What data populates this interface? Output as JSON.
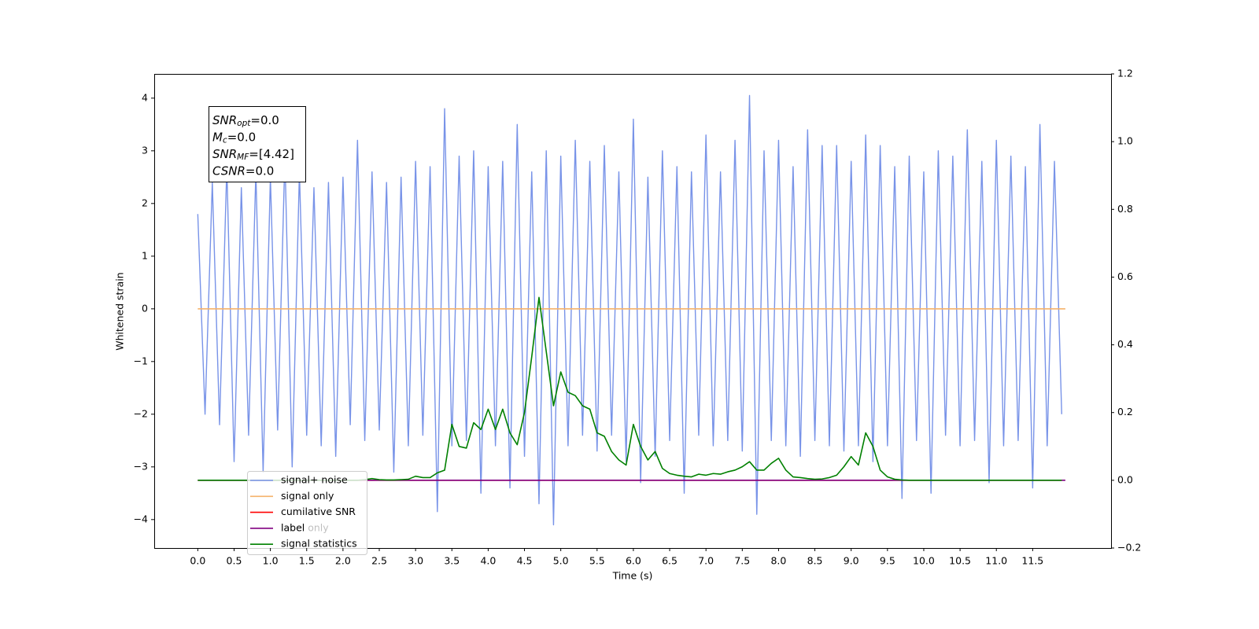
{
  "chart_data": {
    "type": "line",
    "xlabel": "Time (s)",
    "ylabel": "Whitened strain",
    "xlim": [
      -0.6,
      12.58
    ],
    "ylim": [
      -4.54,
      4.46
    ],
    "y2lim": [
      -0.2,
      1.2
    ],
    "xticks": [
      {
        "value": 0,
        "label": "0.0"
      },
      0.5,
      {
        "value": 1,
        "label": "1.0"
      },
      1.5,
      {
        "value": 2,
        "label": "2.0"
      },
      2.5,
      {
        "value": 3,
        "label": "3.0"
      },
      3.5,
      {
        "value": 4,
        "label": "4.0"
      },
      4.5,
      {
        "value": 5,
        "label": "5.0"
      },
      5.5,
      {
        "value": 6,
        "label": "6.0"
      },
      6.5,
      {
        "value": 7,
        "label": "7.0"
      },
      7.5,
      {
        "value": 8,
        "label": "8.0"
      },
      8.5,
      {
        "value": 9,
        "label": "9.0"
      },
      9.5,
      {
        "value": 10,
        "label": "10.0"
      },
      10.5,
      {
        "value": 11,
        "label": "11.0"
      },
      11.5
    ],
    "yticks": [
      {
        "value": -4,
        "label": "−4"
      },
      {
        "value": -3,
        "label": "−3"
      },
      {
        "value": -2,
        "label": "−2"
      },
      {
        "value": -1,
        "label": "−1"
      },
      0,
      1,
      2,
      3,
      4
    ],
    "y2ticks": [
      {
        "value": -0.2,
        "label": "−0.2"
      },
      {
        "value": 0,
        "label": "0.0"
      },
      0.2,
      0.4,
      0.6,
      0.8,
      {
        "value": 1,
        "label": "1.0"
      },
      1.2
    ],
    "grid": false,
    "x": [
      0.0,
      0.1,
      0.2,
      0.3,
      0.4,
      0.5,
      0.6,
      0.7,
      0.8,
      0.9,
      1.0,
      1.1,
      1.2,
      1.3,
      1.4,
      1.5,
      1.6,
      1.7,
      1.8,
      1.9,
      2.0,
      2.1,
      2.2,
      2.3,
      2.4,
      2.5,
      2.6,
      2.7,
      2.8,
      2.9,
      3.0,
      3.1,
      3.2,
      3.3,
      3.4,
      3.5,
      3.6,
      3.7,
      3.8,
      3.9,
      4.0,
      4.1,
      4.2,
      4.3,
      4.4,
      4.5,
      4.6,
      4.7,
      4.8,
      4.9,
      5.0,
      5.1,
      5.2,
      5.3,
      5.4,
      5.5,
      5.6,
      5.7,
      5.8,
      5.9,
      6.0,
      6.1,
      6.2,
      6.3,
      6.4,
      6.5,
      6.6,
      6.7,
      6.8,
      6.9,
      7.0,
      7.1,
      7.2,
      7.3,
      7.4,
      7.5,
      7.6,
      7.7,
      7.8,
      7.9,
      8.0,
      8.1,
      8.2,
      8.3,
      8.4,
      8.5,
      8.6,
      8.7,
      8.8,
      8.9,
      9.0,
      9.1,
      9.2,
      9.3,
      9.4,
      9.5,
      9.6,
      9.7,
      9.8,
      9.9,
      10.0,
      10.1,
      10.2,
      10.3,
      10.4,
      10.5,
      10.6,
      10.7,
      10.8,
      10.9,
      11.0,
      11.1,
      11.2,
      11.3,
      11.4,
      11.5,
      11.6,
      11.7,
      11.8,
      11.9
    ],
    "series": [
      {
        "name": "signal+ noise",
        "color": "#7893e8",
        "axis": "y",
        "values": [
          1.8,
          -2.0,
          2.4,
          -2.2,
          2.7,
          -2.9,
          2.3,
          -2.4,
          2.6,
          -3.1,
          2.5,
          -2.3,
          2.9,
          -3.0,
          2.6,
          -2.4,
          2.3,
          -2.6,
          2.4,
          -2.8,
          2.5,
          -2.2,
          3.2,
          -2.5,
          2.6,
          -2.3,
          2.4,
          -3.1,
          2.5,
          -2.6,
          2.8,
          -2.4,
          2.7,
          -3.85,
          3.8,
          -2.6,
          2.9,
          -2.5,
          3.0,
          -3.5,
          2.7,
          -2.6,
          2.8,
          -3.4,
          3.5,
          -2.8,
          2.6,
          -3.7,
          3.0,
          -4.1,
          2.9,
          -2.6,
          3.2,
          -2.4,
          2.8,
          -2.7,
          3.1,
          -2.4,
          2.6,
          -2.9,
          3.6,
          -3.3,
          2.5,
          -2.8,
          3.0,
          -2.5,
          2.7,
          -3.5,
          2.6,
          -2.4,
          3.3,
          -2.6,
          2.6,
          -2.5,
          3.2,
          -2.7,
          4.05,
          -3.9,
          3.0,
          -2.5,
          3.2,
          -2.6,
          2.7,
          -2.8,
          3.4,
          -2.5,
          3.1,
          -2.6,
          3.1,
          -2.7,
          2.8,
          -2.6,
          3.3,
          -2.9,
          3.1,
          -2.6,
          2.7,
          -3.6,
          2.9,
          -2.5,
          2.6,
          -3.5,
          3.0,
          -2.4,
          2.9,
          -2.6,
          3.4,
          -2.5,
          2.8,
          -3.3,
          3.2,
          -2.6,
          2.9,
          -2.5,
          2.7,
          -3.4,
          3.5,
          -2.6,
          2.8,
          -2.0
        ]
      },
      {
        "name": "signal only",
        "color": "#f5b26b",
        "axis": "y",
        "x": [
          0,
          11.95
        ],
        "values": [
          0,
          0
        ]
      },
      {
        "name": "cumilative SNR",
        "color": "#ff0000",
        "axis": "y2",
        "x": [
          0,
          11.9
        ],
        "values": [
          0,
          0
        ]
      },
      {
        "name": "label",
        "color": "#800080",
        "axis": "y2",
        "x": [
          0,
          11.95
        ],
        "values": [
          0,
          0
        ]
      },
      {
        "name": "signal statistics",
        "color": "#008000",
        "axis": "y2",
        "values": [
          0,
          0,
          0,
          0,
          0,
          0,
          0,
          0,
          0,
          0,
          0,
          0,
          0,
          0,
          0,
          0,
          0,
          0,
          0,
          0,
          0,
          0,
          0,
          0.002,
          0.005,
          0.002,
          0.001,
          0.001,
          0.002,
          0.003,
          0.012,
          0.008,
          0.008,
          0.022,
          0.03,
          0.165,
          0.1,
          0.095,
          0.17,
          0.15,
          0.21,
          0.15,
          0.21,
          0.14,
          0.105,
          0.2,
          0.365,
          0.54,
          0.38,
          0.22,
          0.32,
          0.26,
          0.25,
          0.22,
          0.21,
          0.14,
          0.13,
          0.085,
          0.06,
          0.045,
          0.165,
          0.1,
          0.06,
          0.085,
          0.035,
          0.02,
          0.015,
          0.012,
          0.01,
          0.018,
          0.015,
          0.02,
          0.018,
          0.025,
          0.03,
          0.04,
          0.055,
          0.03,
          0.03,
          0.05,
          0.065,
          0.03,
          0.01,
          0.008,
          0.005,
          0.003,
          0.004,
          0.008,
          0.015,
          0.04,
          0.07,
          0.045,
          0.14,
          0.1,
          0.03,
          0.01,
          0.003,
          0.001,
          0,
          0,
          0,
          0,
          0,
          0,
          0,
          0,
          0,
          0,
          0,
          0,
          0,
          0,
          0,
          0,
          0,
          0,
          0,
          0,
          0,
          0
        ]
      }
    ],
    "legend_ghost_text": "label only",
    "annotation": [
      {
        "var": "SNR",
        "sub": "opt",
        "text": "=0.0"
      },
      {
        "var": "M",
        "sub": "c",
        "text": "=0.0"
      },
      {
        "var": "SNR",
        "sub": "MF",
        "text": "=[4.42]"
      },
      {
        "var": "CSNR",
        "text": "=0.0"
      }
    ]
  }
}
